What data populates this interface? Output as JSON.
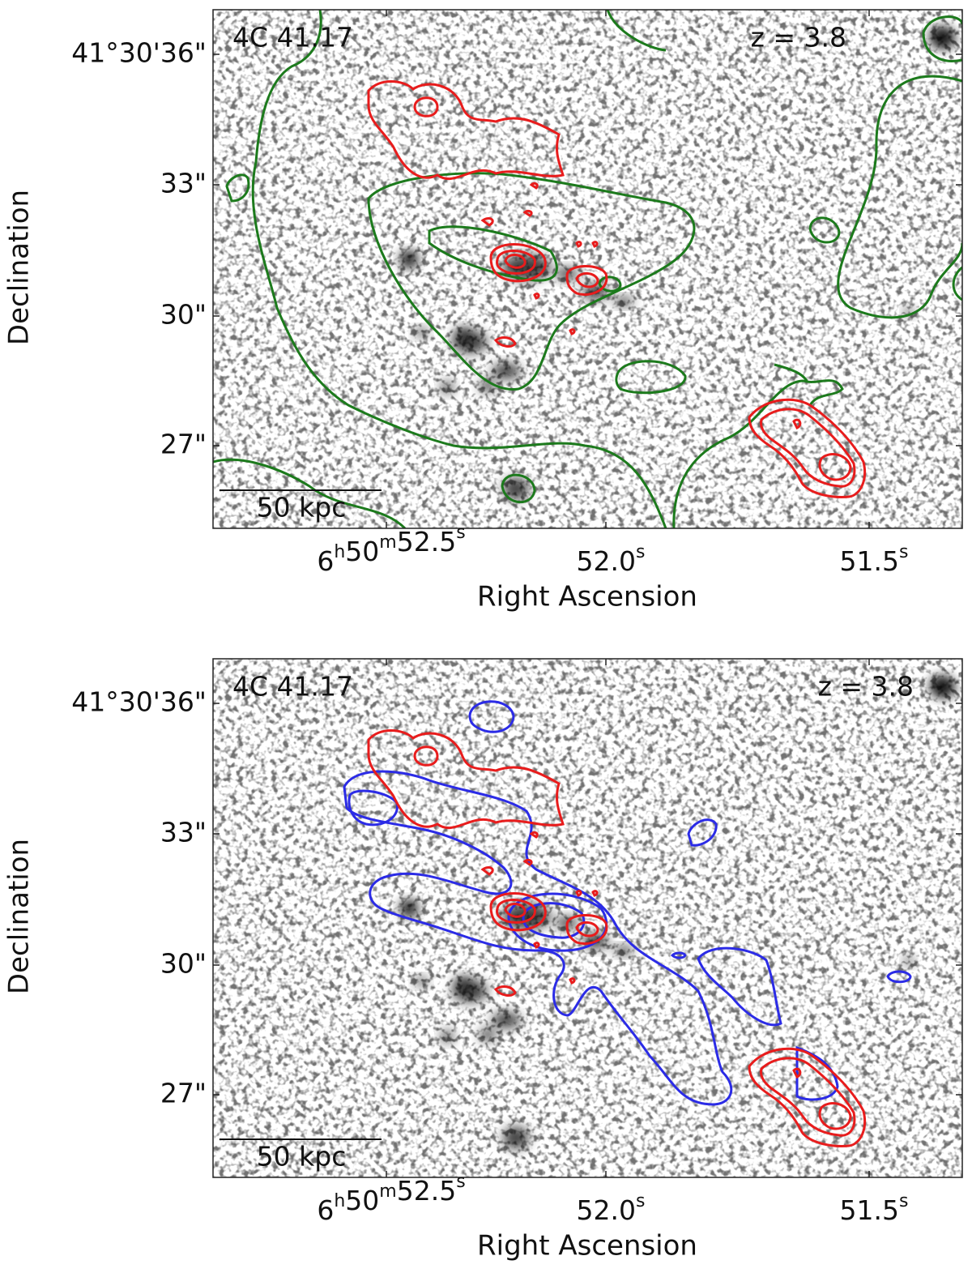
{
  "panels": [
    {
      "source": "4C 41.17",
      "redshift": "z = 3.8",
      "scale_bar": "50 kpc",
      "x_label": "Right Ascension",
      "y_label": "Declination",
      "y_ticks": [
        "41°30'36\"",
        "33\"",
        "30\"",
        "27\""
      ],
      "x_ticks": [
        [
          {
            "text": "6",
            "sup": "h"
          },
          {
            "text": "50",
            "sup": "m"
          },
          {
            "text": "52.5",
            "sup": "s"
          }
        ],
        [
          {
            "text": "52.0",
            "sup": "s"
          }
        ],
        [
          {
            "text": "51.5",
            "sup": "s"
          }
        ]
      ]
    },
    {
      "source": "4C 41.17",
      "redshift": "z = 3.8",
      "scale_bar": "50 kpc",
      "x_label": "Right Ascension",
      "y_label": "Declination",
      "y_ticks": [
        "41°30'36\"",
        "33\"",
        "30\"",
        "27\""
      ],
      "x_ticks": [
        [
          {
            "text": "6",
            "sup": "h"
          },
          {
            "text": "50",
            "sup": "m"
          },
          {
            "text": "52.5",
            "sup": "s"
          }
        ],
        [
          {
            "text": "52.0",
            "sup": "s"
          }
        ],
        [
          {
            "text": "51.5",
            "sup": "s"
          }
        ]
      ]
    }
  ]
}
